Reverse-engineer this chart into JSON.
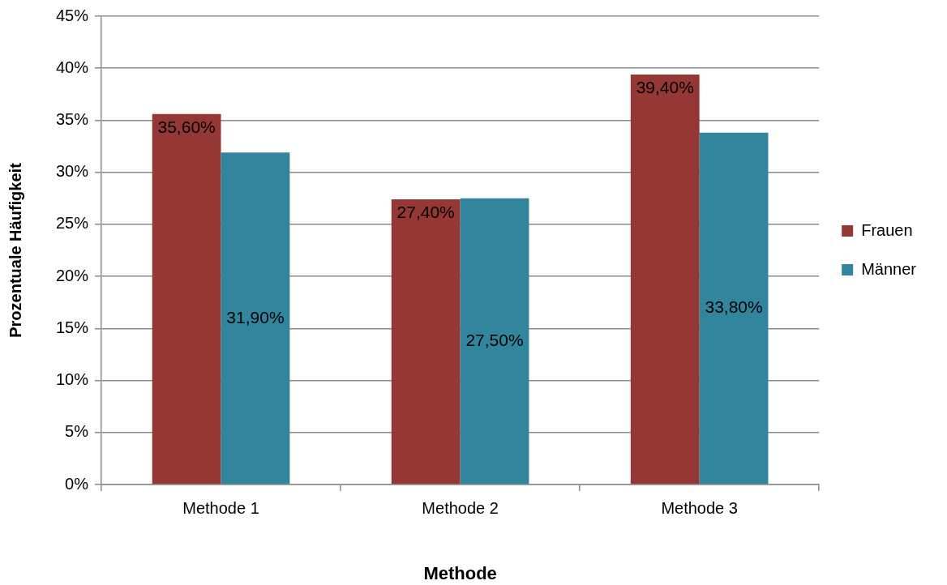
{
  "chart_data": {
    "type": "bar",
    "categories": [
      "Methode 1",
      "Methode 2",
      "Methode 3"
    ],
    "series": [
      {
        "name": "Frauen",
        "color": "#953735",
        "values": [
          35.6,
          27.4,
          39.4
        ],
        "value_labels": [
          "35,60%",
          "27,40%",
          "39,40%"
        ]
      },
      {
        "name": "Männer",
        "color": "#31859c",
        "values": [
          31.9,
          27.5,
          33.8
        ],
        "value_labels": [
          "31,90%",
          "27,50%",
          "33,80%"
        ]
      }
    ],
    "xlabel": "Methode",
    "ylabel": "Prozentuale Häufigkeit",
    "ylim": [
      0,
      45
    ],
    "yticks": [
      {
        "value": 0,
        "label": "0%"
      },
      {
        "value": 5,
        "label": "5%"
      },
      {
        "value": 10,
        "label": "10%"
      },
      {
        "value": 15,
        "label": "15%"
      },
      {
        "value": 20,
        "label": "20%"
      },
      {
        "value": 25,
        "label": "25%"
      },
      {
        "value": 30,
        "label": "30%"
      },
      {
        "value": 35,
        "label": "35%"
      },
      {
        "value": 40,
        "label": "40%"
      },
      {
        "value": 45,
        "label": "45%"
      }
    ],
    "grid": "y",
    "legend": "right"
  }
}
